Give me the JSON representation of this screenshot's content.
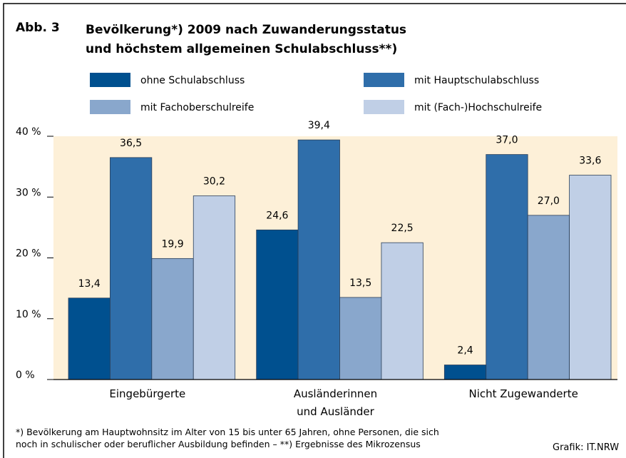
{
  "chart_data": {
    "type": "bar",
    "figure_label": "Abb. 3",
    "title": "Bevölkerung*) 2009 nach Zuwanderungsstatus\nund höchstem allgemeinen Schulabschluss**)",
    "categories": [
      "Eingebürgerte",
      "Ausländerinnen\nund Ausländer",
      "Nicht Zugewanderte"
    ],
    "series": [
      {
        "name": "ohne Schulabschluss",
        "color": "#00508f",
        "values": [
          13.4,
          24.6,
          2.4
        ],
        "value_labels": [
          "13,4",
          "24,6",
          "2,4"
        ]
      },
      {
        "name": "mit Hauptschulabschluss",
        "color": "#2f6eaa",
        "values": [
          36.5,
          39.4,
          37.0
        ],
        "value_labels": [
          "36,5",
          "39,4",
          "37,0"
        ]
      },
      {
        "name": "mit Fachoberschulreife",
        "color": "#89a7cc",
        "values": [
          19.9,
          13.5,
          27.0
        ],
        "value_labels": [
          "19,9",
          "13,5",
          "27,0"
        ]
      },
      {
        "name": "mit (Fach-)Hochschulreife",
        "color": "#c0cfe6",
        "values": [
          30.2,
          22.5,
          33.6
        ],
        "value_labels": [
          "30,2",
          "22,5",
          "33,6"
        ]
      }
    ],
    "ylim": [
      0,
      40
    ],
    "yticks": [
      {
        "value": 0,
        "label": "0 %"
      },
      {
        "value": 10,
        "label": "10 %"
      },
      {
        "value": 20,
        "label": "20 %"
      },
      {
        "value": 30,
        "label": "30 %"
      },
      {
        "value": 40,
        "label": "40 %"
      }
    ],
    "plot_background": "#fdf0d8",
    "footnote": "*) Bevölkerung am Hauptwohnsitz im Alter von 15 bis unter 65 Jahren, ohne Personen, die sich\nnoch in schulischer oder beruflicher Ausbildung befinden – **) Ergebnisse des Mikrozensus",
    "source": "Grafik: IT.NRW"
  }
}
